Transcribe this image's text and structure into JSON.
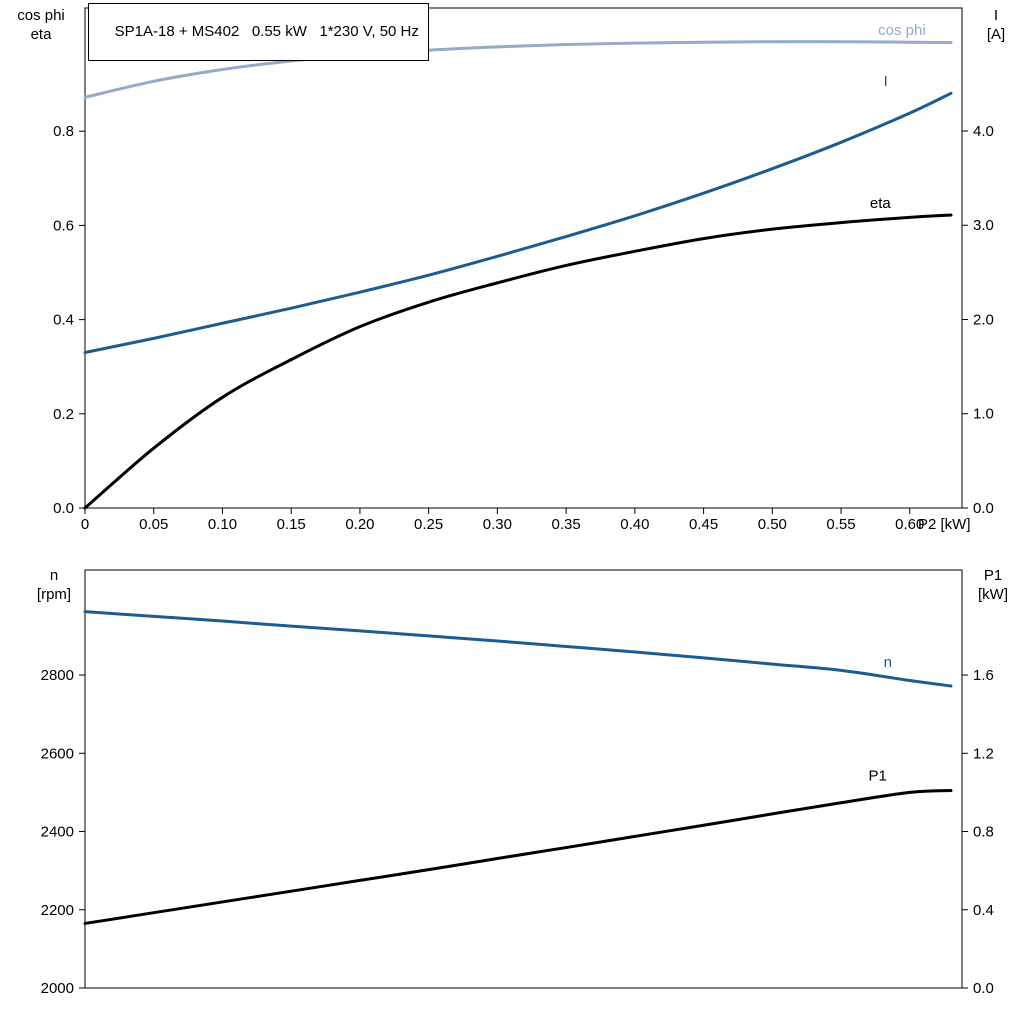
{
  "title_box": {
    "text": "SP1A-18 + MS402   0.55 kW   1*230 V, 50 Hz"
  },
  "axis_headers": {
    "top_left": [
      "cos phi",
      "eta"
    ],
    "top_right": [
      "I",
      "[A]"
    ],
    "bottom_left": [
      "n",
      "[rpm]"
    ],
    "bottom_right": [
      "P1",
      "[kW]"
    ]
  },
  "colors": {
    "light_blue": "#93aac8",
    "dark_blue": "#1e5b8f",
    "black": "#000000",
    "frame": "#000000"
  },
  "chart_data": [
    {
      "type": "line",
      "title": "SP1A-18 + MS402   0.55 kW   1*230 V, 50 Hz",
      "xlabel": "P2 [kW]",
      "xlim": [
        0,
        0.638
      ],
      "x_ticks": [
        0,
        0.05,
        0.1,
        0.15,
        0.2,
        0.25,
        0.3,
        0.35,
        0.4,
        0.45,
        0.5,
        0.55,
        0.6
      ],
      "x_tick_labels": [
        "0",
        "0.05",
        "0.10",
        "0.15",
        "0.20",
        "0.25",
        "0.30",
        "0.35",
        "0.40",
        "0.45",
        "0.50",
        "0.55",
        "0.60"
      ],
      "left_axis": {
        "label": "cos phi / eta",
        "lim": [
          0,
          1.0616
        ],
        "ticks": [
          0.0,
          0.2,
          0.4,
          0.6,
          0.8
        ],
        "tick_labels": [
          "0.0",
          "0.2",
          "0.4",
          "0.6",
          "0.8"
        ]
      },
      "right_axis": {
        "label": "I [A]",
        "lim": [
          0,
          5.305
        ],
        "ticks": [
          0,
          1,
          2,
          3,
          4
        ],
        "tick_labels": [
          "0.0",
          "1.0",
          "2.0",
          "3.0",
          "4.0"
        ]
      },
      "x": [
        0,
        0.05,
        0.1,
        0.15,
        0.2,
        0.25,
        0.3,
        0.35,
        0.4,
        0.45,
        0.5,
        0.55,
        0.6,
        0.63
      ],
      "series": [
        {
          "name": "cos phi",
          "axis": "left",
          "color_key": "light_blue",
          "width": 3,
          "values": [
            0.872,
            0.906,
            0.931,
            0.949,
            0.962,
            0.972,
            0.979,
            0.984,
            0.987,
            0.989,
            0.99,
            0.99,
            0.989,
            0.988
          ],
          "label": {
            "text": "cos phi",
            "x": 0.577,
            "v": 1.004
          }
        },
        {
          "name": "I",
          "axis": "right",
          "color_key": "dark_blue",
          "width": 3,
          "values": [
            1.65,
            1.8,
            1.96,
            2.12,
            2.29,
            2.47,
            2.67,
            2.88,
            3.1,
            3.34,
            3.6,
            3.88,
            4.19,
            4.4
          ],
          "label": {
            "text": "I",
            "x": 0.581,
            "v": 4.48
          }
        },
        {
          "name": "eta",
          "axis": "left",
          "color_key": "black",
          "width": 3,
          "values": [
            0.0,
            0.127,
            0.235,
            0.315,
            0.385,
            0.437,
            0.478,
            0.515,
            0.545,
            0.572,
            0.592,
            0.606,
            0.617,
            0.622
          ],
          "label": {
            "text": "eta",
            "x": 0.571,
            "v": 0.637
          }
        }
      ]
    },
    {
      "type": "line",
      "title": "",
      "xlabel": "",
      "xlim": [
        0,
        0.638
      ],
      "x_ticks": [],
      "x_tick_labels": [],
      "left_axis": {
        "label": "n [rpm]",
        "lim": [
          2000,
          3068.5
        ],
        "ticks": [
          2000,
          2200,
          2400,
          2600,
          2800
        ],
        "tick_labels": [
          "2000",
          "2200",
          "2400",
          "2600",
          "2800"
        ]
      },
      "right_axis": {
        "label": "P1 [kW]",
        "lim": [
          0,
          2.137
        ],
        "ticks": [
          0.0,
          0.4,
          0.8,
          1.2,
          1.6
        ],
        "tick_labels": [
          "0.0",
          "0.4",
          "0.8",
          "1.2",
          "1.6"
        ]
      },
      "x": [
        0,
        0.05,
        0.1,
        0.15,
        0.2,
        0.25,
        0.3,
        0.35,
        0.4,
        0.45,
        0.5,
        0.55,
        0.6,
        0.63
      ],
      "series": [
        {
          "name": "n",
          "axis": "left",
          "color_key": "dark_blue",
          "width": 3,
          "values": [
            2962,
            2950,
            2938,
            2925,
            2913,
            2900,
            2887,
            2873,
            2859,
            2844,
            2828,
            2812,
            2786,
            2772
          ],
          "label": {
            "text": "n",
            "x": 0.581,
            "v": 2820
          }
        },
        {
          "name": "P1",
          "axis": "right",
          "color_key": "black",
          "width": 3,
          "values": [
            0.33,
            0.385,
            0.44,
            0.495,
            0.55,
            0.605,
            0.662,
            0.718,
            0.775,
            0.832,
            0.89,
            0.947,
            1.0,
            1.01
          ],
          "label": {
            "text": "P1",
            "x": 0.57,
            "v": 1.06
          }
        }
      ]
    }
  ]
}
